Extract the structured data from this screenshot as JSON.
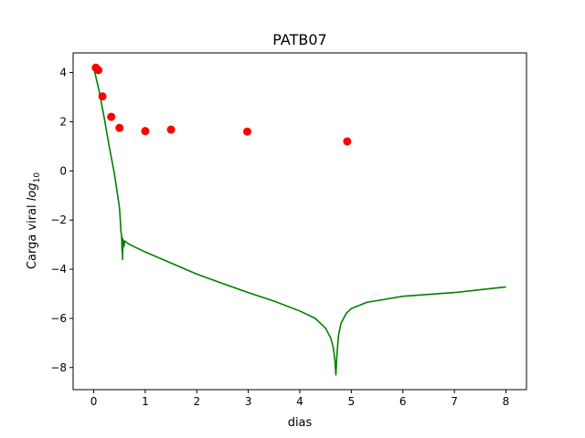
{
  "chart_data": {
    "type": "line",
    "title": "PATB07",
    "xlabel": "dias",
    "ylabel": {
      "text": "Carga viral ",
      "math": "log",
      "sub": "10"
    },
    "xlim": [
      -0.4,
      8.4
    ],
    "ylim": [
      -8.9,
      4.8
    ],
    "xticks": [
      0,
      1,
      2,
      3,
      4,
      5,
      6,
      7,
      8
    ],
    "yticks": [
      -8,
      -6,
      -4,
      -2,
      0,
      2,
      4
    ],
    "grid": false,
    "series": [
      {
        "kind": "scatter",
        "color": "#ff0000",
        "x": [
          0.04,
          0.09,
          0.17,
          0.34,
          0.5,
          1.0,
          1.5,
          2.98,
          4.92
        ],
        "y": [
          4.2,
          4.1,
          3.03,
          2.2,
          1.75,
          1.62,
          1.68,
          1.6,
          1.2
        ]
      },
      {
        "kind": "line",
        "color": "#008000",
        "x": [
          0.0,
          0.1,
          0.2,
          0.3,
          0.4,
          0.5,
          0.53,
          0.54,
          0.55,
          0.555,
          0.56,
          0.565,
          0.57,
          0.58,
          0.59,
          0.6,
          0.63,
          0.7,
          1.0,
          1.5,
          2.0,
          2.5,
          3.0,
          3.5,
          4.0,
          4.3,
          4.5,
          4.6,
          4.65,
          4.68,
          4.7,
          4.72,
          4.75,
          4.8,
          4.9,
          5.0,
          5.3,
          6.0,
          7.0,
          8.0
        ],
        "y": [
          4.2,
          3.3,
          2.2,
          1.0,
          -0.1,
          -1.5,
          -2.5,
          -2.6,
          -3.3,
          -2.75,
          -3.6,
          -2.75,
          -3.15,
          -2.85,
          -3.05,
          -2.85,
          -2.9,
          -3.0,
          -3.3,
          -3.75,
          -4.2,
          -4.58,
          -4.95,
          -5.3,
          -5.7,
          -6.0,
          -6.4,
          -6.8,
          -7.2,
          -7.7,
          -8.3,
          -7.5,
          -6.7,
          -6.2,
          -5.8,
          -5.6,
          -5.35,
          -5.1,
          -4.95,
          -4.72
        ]
      }
    ]
  }
}
